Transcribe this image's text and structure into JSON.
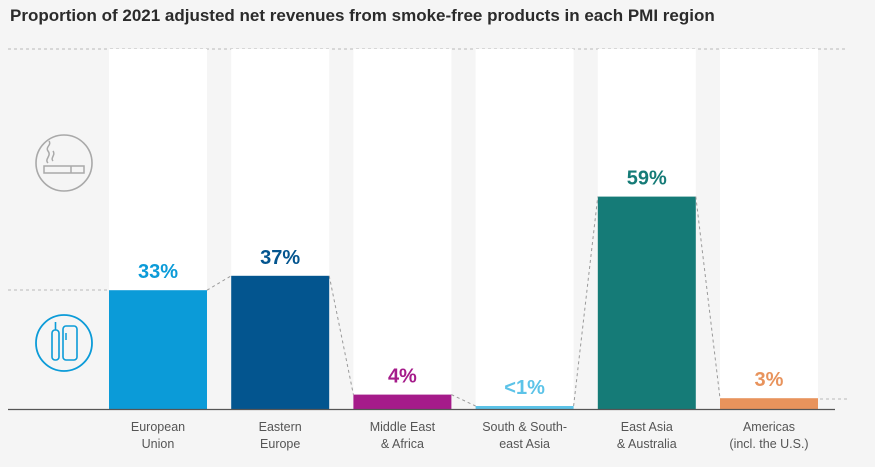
{
  "chart_data": {
    "type": "bar",
    "title": "Proportion of 2021 adjusted net revenues from smoke-free products in each PMI region",
    "categories": [
      [
        "European",
        "Union"
      ],
      [
        "Eastern",
        "Europe"
      ],
      [
        "Middle East",
        "& Africa"
      ],
      [
        "South & South-",
        "east Asia"
      ],
      [
        "East Asia",
        "& Australia"
      ],
      [
        "Americas",
        "(incl. the U.S.)"
      ]
    ],
    "values": [
      33,
      37,
      4,
      0.5,
      59,
      3
    ],
    "value_labels": [
      "33%",
      "37%",
      "4%",
      "<1%",
      "59%",
      "3%"
    ],
    "colors": [
      "#0b9bd8",
      "#03558f",
      "#a51b8a",
      "#5cc3e8",
      "#157b77",
      "#e8935c"
    ],
    "ylim": [
      0,
      100
    ],
    "icons": [
      "cigarette-icon",
      "smoke-free-device-icon"
    ]
  }
}
